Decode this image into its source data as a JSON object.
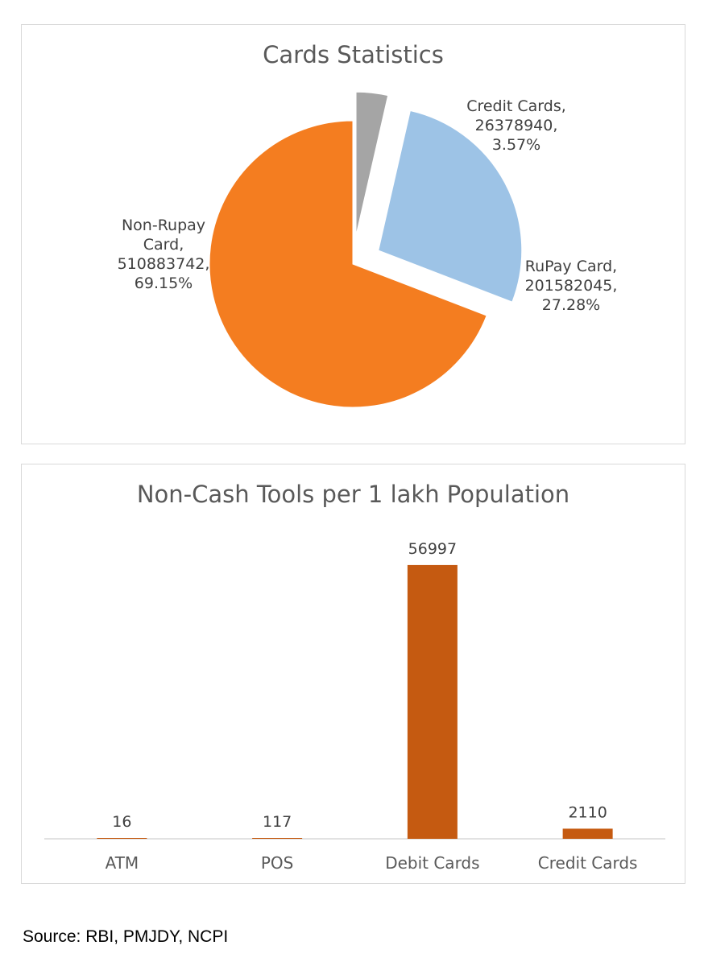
{
  "chart_data": [
    {
      "type": "pie",
      "title": "Cards Statistics",
      "slices": [
        {
          "name": "Credit Cards",
          "value": 26378940,
          "percent": "3.57%",
          "color": "#a5a5a5"
        },
        {
          "name": "RuPay Card",
          "value": 201582045,
          "percent": "27.28%",
          "color": "#9dc3e6"
        },
        {
          "name": "Non-Rupay Card",
          "value": 510883742,
          "percent": "69.15%",
          "color": "#f47d20"
        }
      ],
      "label_lines": [
        [
          "Credit Cards,",
          "26378940,",
          "3.57%"
        ],
        [
          "RuPay Card,",
          "201582045,",
          "27.28%"
        ],
        [
          "Non-Rupay",
          "Card,",
          "510883742,",
          "69.15%"
        ]
      ]
    },
    {
      "type": "bar",
      "title": "Non-Cash Tools per 1 lakh Population",
      "categories": [
        "ATM",
        "POS",
        "Debit Cards",
        "Credit Cards"
      ],
      "values": [
        16,
        117,
        56997,
        2110
      ],
      "color": "#c55a11",
      "ylim": [
        0,
        60000
      ]
    }
  ],
  "source": "Source: RBI, PMJDY, NCPI"
}
